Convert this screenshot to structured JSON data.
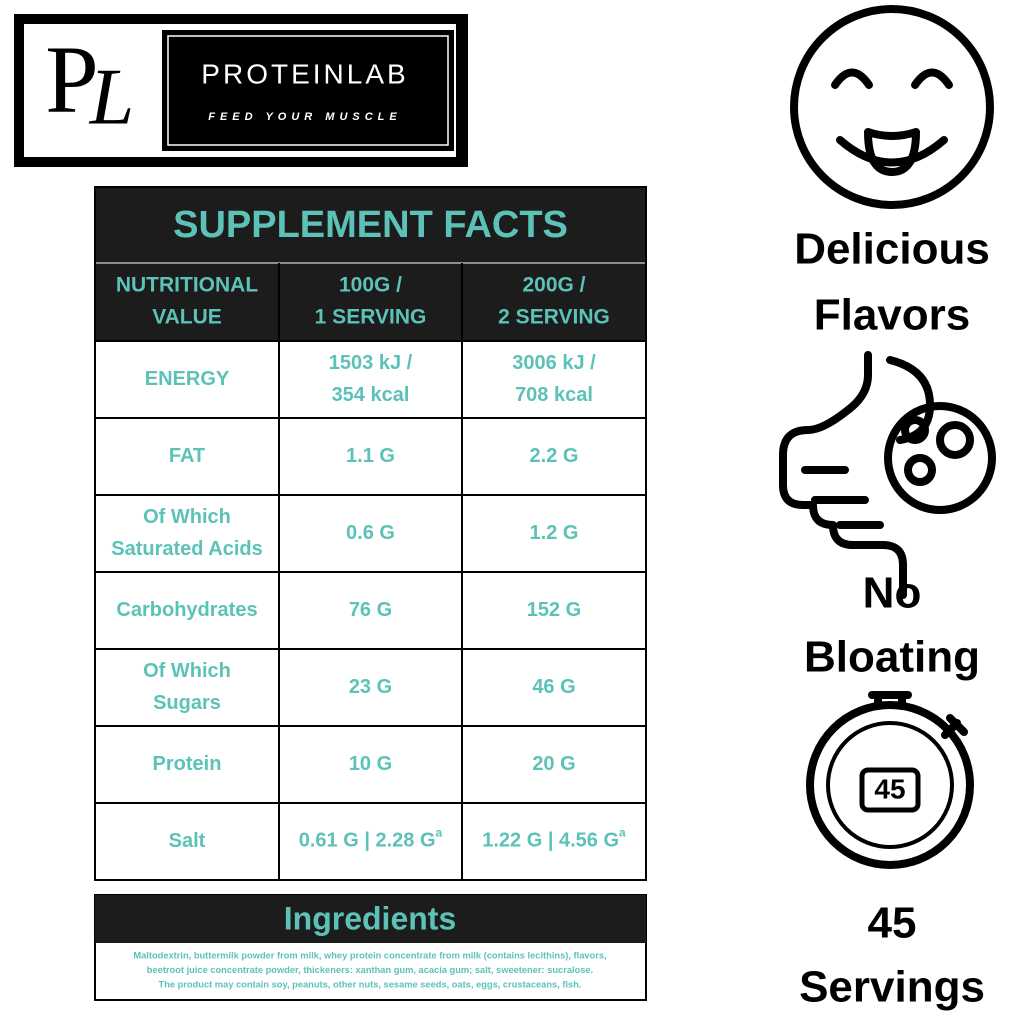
{
  "logo": {
    "monogram": [
      "P",
      "L"
    ],
    "brand": "PROTEINLAB",
    "tagline": "FEED YOUR MUSCLE"
  },
  "table": {
    "title": "SUPPLEMENT FACTS",
    "header": [
      [
        "NUTRITIONAL",
        "VALUE"
      ],
      [
        "100G /",
        "1 SERVING"
      ],
      [
        "200G /",
        "2 SERVING"
      ]
    ],
    "rows": [
      [
        [
          "ENERGY"
        ],
        [
          "1503 kJ /",
          "354 kcal"
        ],
        [
          "3006 kJ /",
          "708 kcal"
        ]
      ],
      [
        [
          "FAT"
        ],
        [
          "1.1 G"
        ],
        [
          "2.2 G"
        ]
      ],
      [
        [
          "Of Which",
          "Saturated Acids"
        ],
        [
          "0.6 G"
        ],
        [
          "1.2 G"
        ]
      ],
      [
        [
          "Carbohydrates"
        ],
        [
          "76 G"
        ],
        [
          "152 G"
        ]
      ],
      [
        [
          "Of Which",
          "Sugars"
        ],
        [
          "23 G"
        ],
        [
          "46 G"
        ]
      ],
      [
        [
          "Protein"
        ],
        [
          "10 G"
        ],
        [
          "20 G"
        ]
      ],
      [
        [
          "Salt"
        ],
        [
          {
            "text": "0.61 G | 2.28 G",
            "sup": "a"
          }
        ],
        [
          {
            "text": "1.22 G | 4.56 G",
            "sup": "a"
          }
        ]
      ]
    ]
  },
  "ingredients": {
    "title": "Ingredients",
    "lines": [
      "Maltodextrin, buttermilk powder from milk, whey protein concentrate from milk (contains lecithins), flavors,",
      "beetroot juice concentrate powder, thickeners: xanthan gum, acacia gum; salt, sweetener: sucralose.",
      "The product may contain soy, peanuts, other nuts, sesame seeds, oats, eggs, crustaceans, fish."
    ]
  },
  "features": [
    {
      "lines": [
        "Delicious",
        "Flavors"
      ]
    },
    {
      "lines": [
        "No",
        "Bloating"
      ]
    },
    {
      "icon_text": "45",
      "lines": [
        "45",
        "Servings"
      ]
    }
  ]
}
